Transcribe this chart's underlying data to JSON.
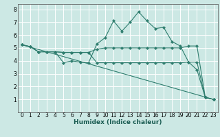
{
  "xlabel": "Humidex (Indice chaleur)",
  "bg_color": "#cce8e4",
  "grid_color": "#ffffff",
  "line_color": "#2e7d6e",
  "xlim": [
    -0.5,
    23.5
  ],
  "ylim": [
    0,
    8.4
  ],
  "xticks": [
    0,
    1,
    2,
    3,
    4,
    5,
    6,
    7,
    8,
    9,
    10,
    11,
    12,
    13,
    14,
    15,
    16,
    17,
    18,
    19,
    20,
    21,
    22,
    23
  ],
  "yticks": [
    1,
    2,
    3,
    4,
    5,
    6,
    7,
    8
  ],
  "lines": [
    {
      "x": [
        0,
        1,
        2,
        3,
        4,
        5,
        6,
        7,
        8,
        9,
        10,
        11,
        12,
        13,
        14,
        15,
        16,
        17,
        18,
        19,
        20,
        21,
        22,
        23
      ],
      "y": [
        5.25,
        5.1,
        4.7,
        4.7,
        4.7,
        3.85,
        4.0,
        3.9,
        3.85,
        5.3,
        5.8,
        7.1,
        6.3,
        7.0,
        7.8,
        7.1,
        6.5,
        6.6,
        5.5,
        5.15,
        3.9,
        3.3,
        1.15,
        1.0
      ],
      "marker": true
    },
    {
      "x": [
        0,
        1,
        2,
        3,
        4,
        5,
        6,
        7,
        8,
        9,
        10,
        11,
        12,
        13,
        14,
        15,
        16,
        17,
        18,
        19,
        20,
        21,
        22,
        23
      ],
      "y": [
        5.25,
        5.1,
        4.7,
        4.7,
        4.7,
        4.65,
        4.65,
        4.65,
        4.65,
        4.9,
        5.0,
        5.0,
        5.0,
        5.0,
        5.0,
        5.0,
        5.0,
        5.0,
        5.0,
        5.0,
        5.15,
        5.15,
        1.15,
        1.0
      ],
      "marker": true
    },
    {
      "x": [
        0,
        1,
        2,
        3,
        4,
        5,
        6,
        7,
        8,
        9,
        10,
        11,
        12,
        13,
        14,
        15,
        16,
        17,
        18,
        19,
        20,
        21,
        22,
        23
      ],
      "y": [
        5.25,
        5.1,
        4.7,
        4.7,
        4.7,
        4.65,
        4.65,
        4.65,
        4.65,
        3.85,
        3.85,
        3.85,
        3.85,
        3.85,
        3.85,
        3.85,
        3.85,
        3.85,
        3.85,
        3.85,
        3.9,
        3.9,
        1.15,
        1.0
      ],
      "marker": true
    },
    {
      "x": [
        0,
        23
      ],
      "y": [
        5.25,
        1.0
      ],
      "marker": false
    }
  ]
}
